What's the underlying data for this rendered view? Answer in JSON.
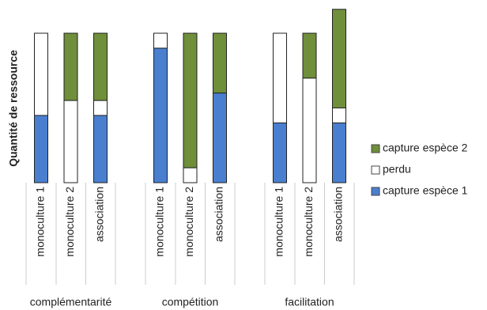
{
  "chart_data": {
    "type": "stacked-bar",
    "y_label": "Quantité de ressource",
    "groups": [
      "complémentarité",
      "compétition",
      "facilitation"
    ],
    "categories": [
      "monoculture 1",
      "monoculture 2",
      "association",
      "monoculture 1",
      "monoculture 2",
      "association",
      "monoculture 1",
      "monoculture 2",
      "association"
    ],
    "series": [
      {
        "name": "capture espèce 1",
        "color": "#4a7fd0",
        "values": [
          45,
          0,
          45,
          90,
          0,
          60,
          40,
          0,
          40
        ]
      },
      {
        "name": "perdu",
        "color": "#ffffff",
        "values": [
          55,
          55,
          10,
          10,
          10,
          0,
          60,
          70,
          10
        ]
      },
      {
        "name": "capture espèce 2",
        "color": "#6f8f3a",
        "values": [
          0,
          45,
          45,
          0,
          90,
          40,
          0,
          30,
          66
        ]
      }
    ]
  }
}
